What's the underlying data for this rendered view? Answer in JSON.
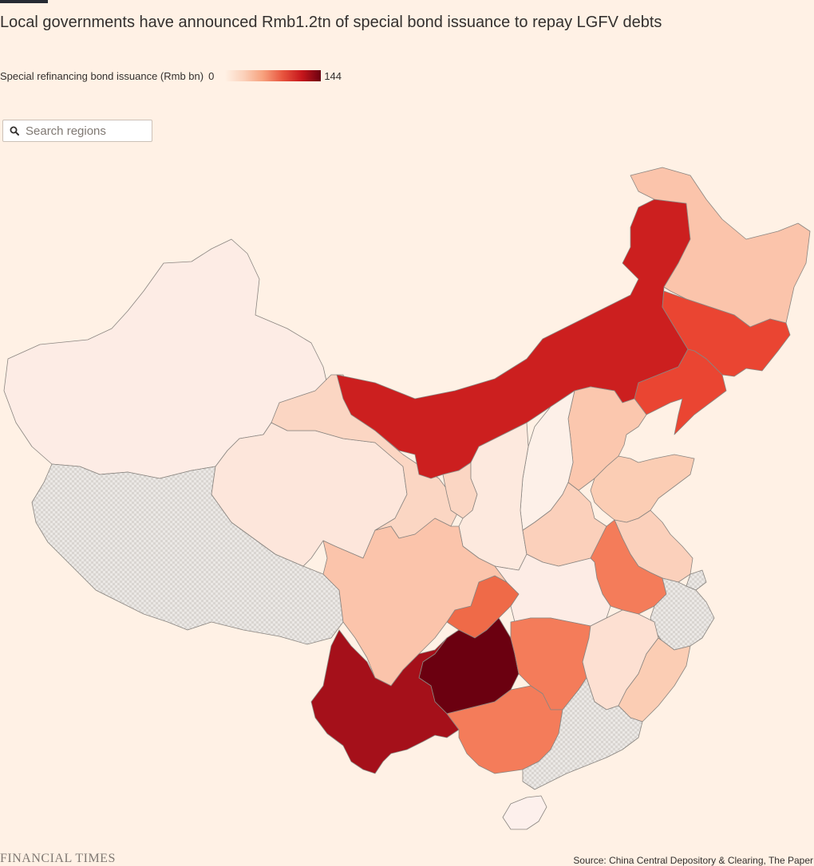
{
  "title": "Local governments have announced Rmb1.2tn of special bond issuance to repay LGFV debts",
  "legend": {
    "label": "Special refinancing bond issuance (Rmb bn)",
    "min": "0",
    "max": "144"
  },
  "search": {
    "placeholder": "Search regions",
    "icon": "search-icon"
  },
  "colors": {
    "background": "#fff1e5",
    "no_data": "#e6e3e0",
    "scale": [
      "#fff1e5",
      "#fbd0b9",
      "#f7a07c",
      "#e8553f",
      "#c7171c",
      "#6b0010"
    ]
  },
  "map_data": {
    "type": "choropleth",
    "unit": "Rmb bn",
    "range": [
      0,
      144
    ],
    "regions": [
      {
        "id": "xinjiang",
        "value": 1,
        "fill": "#fdece5"
      },
      {
        "id": "tibet",
        "value": null,
        "fill": "#e6e3e0"
      },
      {
        "id": "qinghai",
        "value": 5,
        "fill": "#fde6db"
      },
      {
        "id": "gansu",
        "value": 15,
        "fill": "#fbd6c3"
      },
      {
        "id": "inner-mongolia",
        "value": 104,
        "fill": "#cc1f1f"
      },
      {
        "id": "heilongjiang",
        "value": 25,
        "fill": "#fbc4ab"
      },
      {
        "id": "jilin",
        "value": 80,
        "fill": "#ea4532"
      },
      {
        "id": "liaoning",
        "value": 80,
        "fill": "#ea4532"
      },
      {
        "id": "beijing",
        "value": null,
        "fill": "#e6e3e0"
      },
      {
        "id": "tianjin",
        "value": 100,
        "fill": "#cc1f1f"
      },
      {
        "id": "hebei",
        "value": 24,
        "fill": "#fbc7ae"
      },
      {
        "id": "shanxi",
        "value": 3,
        "fill": "#fdf0e8"
      },
      {
        "id": "ningxia",
        "value": 14,
        "fill": "#fbd6c3"
      },
      {
        "id": "shaanxi",
        "value": 4,
        "fill": "#fde9de"
      },
      {
        "id": "henan",
        "value": 16,
        "fill": "#fbd0bb"
      },
      {
        "id": "shandong",
        "value": 18,
        "fill": "#fbcdb4"
      },
      {
        "id": "jiangsu",
        "value": 16,
        "fill": "#fbd0bb"
      },
      {
        "id": "anhui",
        "value": 55,
        "fill": "#f47c5a"
      },
      {
        "id": "shanghai",
        "value": null,
        "fill": "#e6e3e0"
      },
      {
        "id": "zhejiang",
        "value": null,
        "fill": "#e6e3e0"
      },
      {
        "id": "hubei",
        "value": 3,
        "fill": "#fdece5"
      },
      {
        "id": "chongqing",
        "value": 60,
        "fill": "#ef6a48"
      },
      {
        "id": "sichuan",
        "value": 22,
        "fill": "#fbc4ab"
      },
      {
        "id": "guizhou",
        "value": 144,
        "fill": "#6b0010"
      },
      {
        "id": "yunnan",
        "value": 122,
        "fill": "#a5101a"
      },
      {
        "id": "hunan",
        "value": 55,
        "fill": "#f47c5a"
      },
      {
        "id": "jiangxi",
        "value": 8,
        "fill": "#fde0d2"
      },
      {
        "id": "fujian",
        "value": 18,
        "fill": "#fbcdb4"
      },
      {
        "id": "guangxi",
        "value": 55,
        "fill": "#f47c5a"
      },
      {
        "id": "guangdong",
        "value": null,
        "fill": "#e6e3e0"
      },
      {
        "id": "hainan",
        "value": 1,
        "fill": "#fdf0ec"
      }
    ]
  },
  "footer": {
    "logo": "FINANCIAL TIMES",
    "source": "Source: China Central Depository & Clearing, The Paper"
  }
}
